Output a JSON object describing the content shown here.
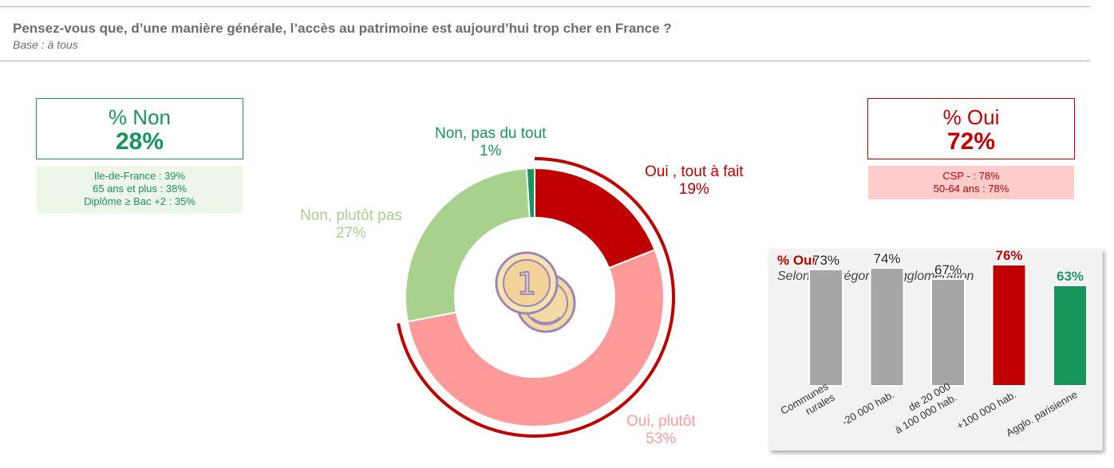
{
  "header": {
    "title": "Pensez-vous que, d’une manière générale, l’accès au patrimoine est aujourd’hui trop cher en France ?",
    "subtitle": "Base : à tous"
  },
  "summary_non": {
    "label": "% Non",
    "value": "28%",
    "details": [
      "Ile-de-France : 39%",
      "65 ans et plus : 38%",
      "Diplôme ≥ Bac +2 : 35%"
    ]
  },
  "summary_oui": {
    "label": "% Oui",
    "value": "72%",
    "details": [
      "CSP - : 78%",
      "50-64 ans : 78%"
    ]
  },
  "icon": "coins-icon",
  "colors": {
    "oui_tout_a_fait": "#c00000",
    "oui_plutot": "#ff9a9a",
    "non_plutot_pas": "#a9d18e",
    "non_pas_du_tout": "#17955a",
    "grey_bar": "#a6a6a6",
    "green_text": "#17955a",
    "red_text": "#c00000"
  },
  "chart_data": [
    {
      "type": "pie",
      "title": "",
      "slices": [
        {
          "label": "Oui , tout à fait",
          "value": 19,
          "display": "19%"
        },
        {
          "label": "Oui, plutôt",
          "value": 53,
          "display": "53%"
        },
        {
          "label": "Non, plutôt pas",
          "value": 27,
          "display": "27%"
        },
        {
          "label": "Non, pas du tout",
          "value": 1,
          "display": "1%"
        }
      ]
    },
    {
      "type": "bar",
      "title": "% Oui",
      "subtitle": "Selon la catégorie d’agglomération",
      "categories": [
        "Communes rurales",
        "-20 000 hab.",
        "de 20 000 à 100 000 hab.",
        "+100 000 hab.",
        "Agglo. parisienne"
      ],
      "category_lines": [
        [
          "Communes",
          "rurales"
        ],
        [
          "-20 000 hab."
        ],
        [
          "de 20 000",
          "à 100 000 hab."
        ],
        [
          "+100 000 hab."
        ],
        [
          "Agglo. parisienne"
        ]
      ],
      "values": [
        73,
        74,
        67,
        76,
        63
      ],
      "value_labels": [
        "73%",
        "74%",
        "67%",
        "76%",
        "63%"
      ],
      "ylim": [
        0,
        100
      ]
    }
  ]
}
